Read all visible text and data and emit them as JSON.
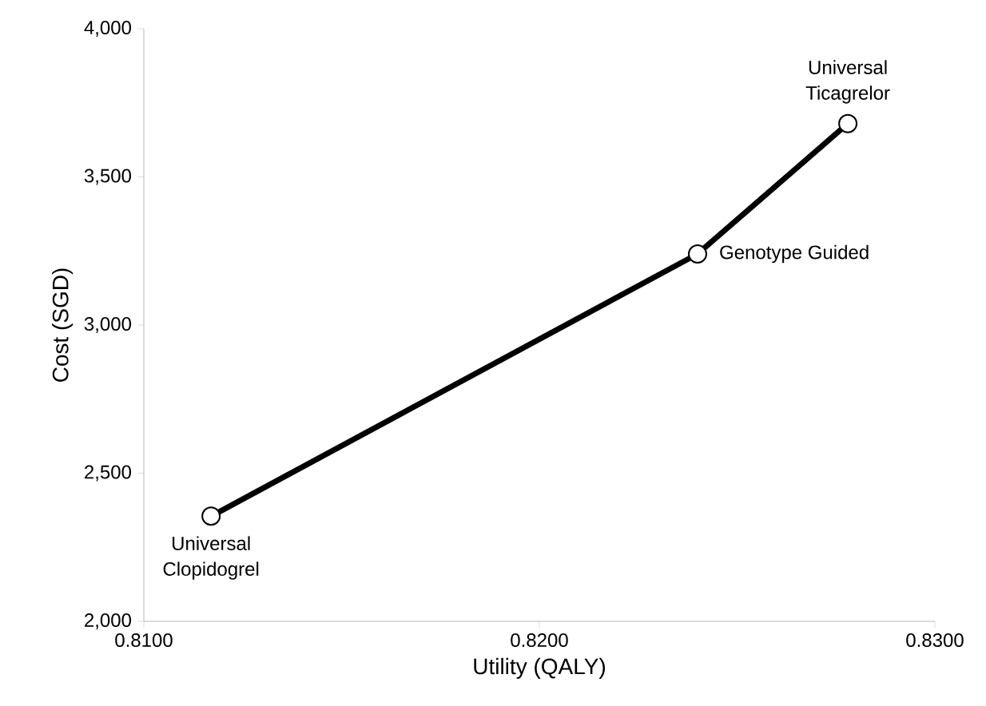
{
  "chart_data": {
    "type": "line",
    "xlabel": "Utility (QALY)",
    "ylabel": "Cost (SGD)",
    "x": [
      0.8117,
      0.824,
      0.8278
    ],
    "series": [
      {
        "color": "#000000",
        "values": [
          2355,
          3240,
          3680
        ]
      }
    ],
    "xlim": [
      0.81,
      0.83
    ],
    "xticks": [
      {
        "value": 0.81,
        "label": "0.8100"
      },
      {
        "value": 0.82,
        "label": "0.8200"
      },
      {
        "value": 0.83,
        "label": "0.8300"
      }
    ],
    "ylim": [
      2000,
      4000
    ],
    "yticks": [
      {
        "value": 2000,
        "label": "2,000"
      },
      {
        "value": 2500,
        "label": "2,500"
      },
      {
        "value": 3000,
        "label": "3,000"
      },
      {
        "value": 3500,
        "label": "3,500"
      },
      {
        "value": 4000,
        "label": "4,000"
      }
    ],
    "grid": false,
    "marker": "circle",
    "line_style": "solid",
    "annotations": [
      {
        "text": "Universal Clopidogrel",
        "x": 0.8117,
        "y": 2355
      },
      {
        "text": "Genotype Guided",
        "x": 0.824,
        "y": 3240
      },
      {
        "text": "Universal Ticagrelor",
        "x": 0.8278,
        "y": 3680
      }
    ]
  }
}
